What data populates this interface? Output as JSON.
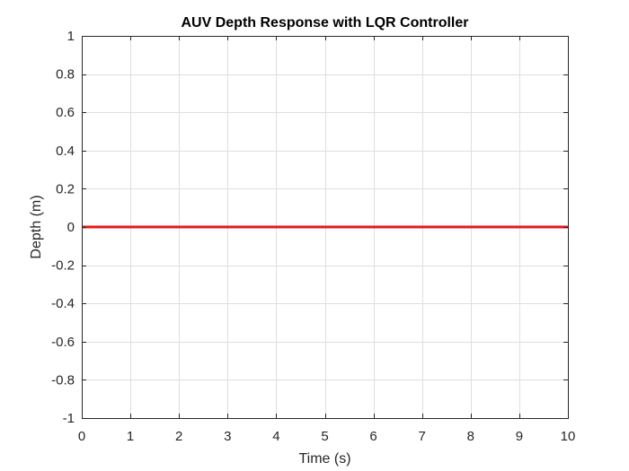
{
  "chart_data": {
    "type": "line",
    "title": "AUV Depth Response with LQR Controller",
    "xlabel": "Time (s)",
    "ylabel": "Depth (m)",
    "xlim": [
      0,
      10
    ],
    "ylim": [
      -1,
      1
    ],
    "xticks": [
      "0",
      "1",
      "2",
      "3",
      "4",
      "5",
      "6",
      "7",
      "8",
      "9",
      "10"
    ],
    "yticks": [
      "1",
      "0.8",
      "0.6",
      "0.4",
      "0.2",
      "0",
      "-0.2",
      "-0.4",
      "-0.6",
      "-0.8",
      "-1"
    ],
    "grid": true,
    "series": [
      {
        "color": "#e41a1c",
        "x": [
          0,
          1,
          2,
          3,
          4,
          5,
          6,
          7,
          8,
          9,
          10
        ],
        "y": [
          0,
          0,
          0,
          0,
          0,
          0,
          0,
          0,
          0,
          0,
          0
        ]
      }
    ]
  }
}
